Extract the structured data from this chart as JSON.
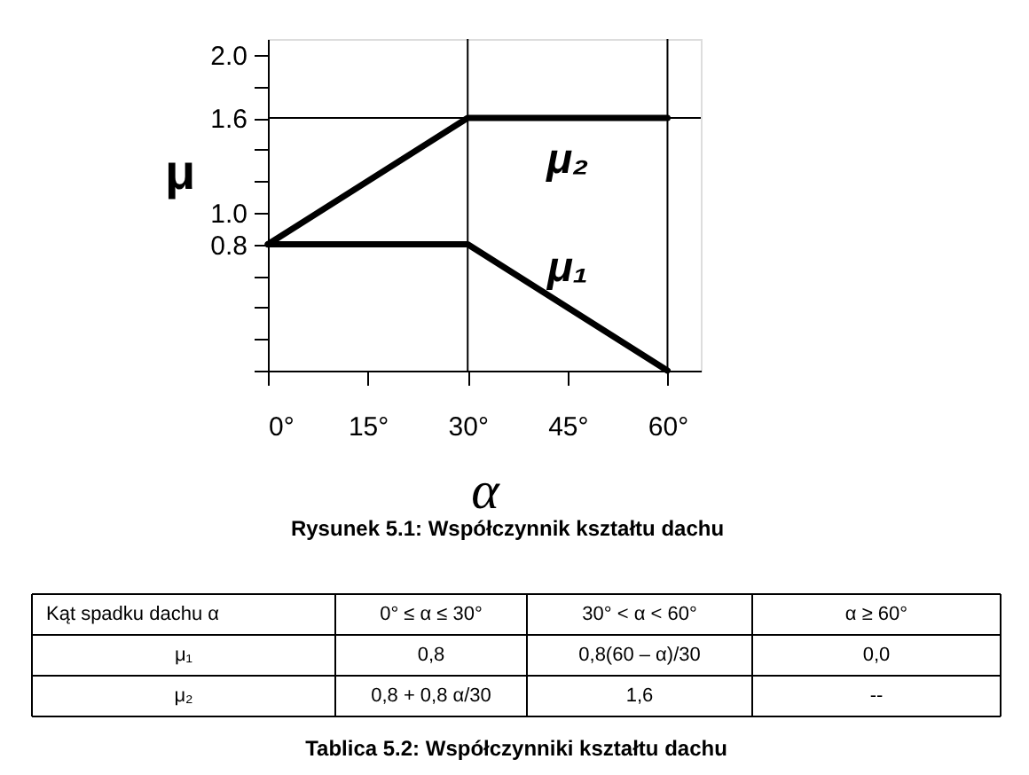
{
  "chart_data": {
    "type": "line",
    "xlabel": "α",
    "ylabel": "μ",
    "x": [
      0,
      30,
      60
    ],
    "series": [
      {
        "name": "μ₁",
        "color": "#000000",
        "values": [
          0.8,
          0.8,
          0.0
        ]
      },
      {
        "name": "μ₂",
        "color": "#000000",
        "values": [
          0.8,
          1.6,
          1.6
        ]
      }
    ],
    "xlim": [
      0,
      65
    ],
    "ylim": [
      0,
      2.1
    ],
    "xticks": [
      {
        "value": 0,
        "label": "0°"
      },
      {
        "value": 15,
        "label": "15°"
      },
      {
        "value": 30,
        "label": "30°"
      },
      {
        "value": 45,
        "label": "45°"
      },
      {
        "value": 60,
        "label": "60°"
      }
    ],
    "yticks": [
      {
        "value": 0,
        "label": null
      },
      {
        "value": 0.2,
        "label": null
      },
      {
        "value": 0.4,
        "label": null
      },
      {
        "value": 0.6,
        "label": null
      },
      0.8,
      {
        "value": 1,
        "label": "1.0"
      },
      {
        "value": 1.2,
        "label": null
      },
      {
        "value": 1.4,
        "label": null
      },
      1.6,
      {
        "value": 1.8,
        "label": null
      },
      {
        "value": 2,
        "label": "2.0"
      }
    ],
    "ref_lines": [
      {
        "axis": "y",
        "value": 1.6
      },
      {
        "axis": "x",
        "value": 30
      },
      {
        "axis": "x",
        "value": 60
      }
    ],
    "grid": false,
    "marker": "none",
    "line_style": "solid",
    "annotations": [
      "Rysunek 5.1: Współczynnik kształtu dachu",
      "Kąt spadku dachu α",
      "0° ≤ α ≤ 30°",
      "30° < α < 60°",
      "α ≥ 60°",
      "μ₁",
      "0,8",
      "0,8(60 – α)/30",
      "0,0",
      "μ₂",
      "0,8 + 0,8 α/30",
      "1,6",
      "--",
      "Tablica 5.2:   Współczynniki kształtu dachu"
    ]
  }
}
